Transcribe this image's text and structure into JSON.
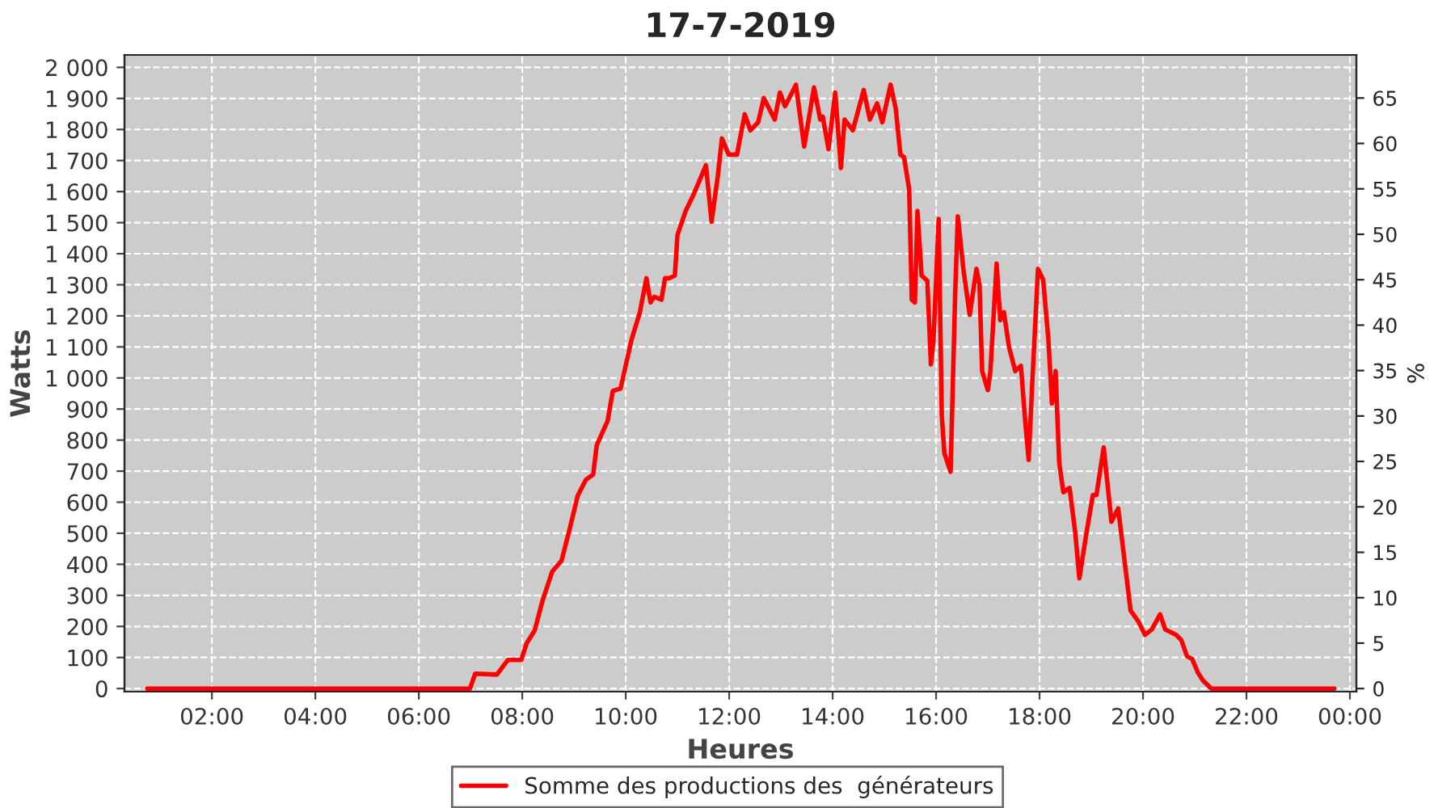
{
  "chart_data": {
    "type": "line",
    "title": "17-7-2019",
    "xlabel": "Heures",
    "ylabel": "Watts",
    "y2label": "%",
    "series": [
      {
        "name": "Somme des productions des  générateurs",
        "color": "#ff0000",
        "x": [
          0.75,
          6.99,
          7.09,
          7.51,
          7.72,
          7.98,
          8.08,
          8.24,
          8.39,
          8.58,
          8.76,
          8.92,
          9.07,
          9.23,
          9.37,
          9.44,
          9.65,
          9.75,
          9.9,
          10.11,
          10.27,
          10.4,
          10.48,
          10.55,
          10.69,
          10.76,
          10.84,
          10.95,
          11.0,
          11.16,
          11.31,
          11.42,
          11.55,
          11.66,
          11.78,
          11.86,
          11.99,
          12.15,
          12.3,
          12.41,
          12.56,
          12.67,
          12.88,
          12.98,
          13.08,
          13.29,
          13.45,
          13.64,
          13.76,
          13.81,
          13.92,
          14.05,
          14.16,
          14.23,
          14.39,
          14.6,
          14.72,
          14.86,
          14.96,
          15.12,
          15.22,
          15.31,
          15.38,
          15.48,
          15.53,
          15.59,
          15.64,
          15.72,
          15.83,
          15.9,
          15.95,
          16.05,
          16.11,
          16.16,
          16.28,
          16.37,
          16.42,
          16.53,
          16.65,
          16.78,
          16.84,
          16.89,
          17.0,
          17.05,
          17.17,
          17.24,
          17.31,
          17.41,
          17.53,
          17.64,
          17.72,
          17.79,
          17.86,
          17.97,
          18.07,
          18.17,
          18.24,
          18.31,
          18.38,
          18.46,
          18.58,
          18.69,
          18.77,
          18.9,
          19.03,
          19.1,
          19.24,
          19.39,
          19.52,
          19.76,
          19.91,
          20.04,
          20.17,
          20.33,
          20.43,
          20.64,
          20.74,
          20.85,
          20.95,
          21.06,
          21.16,
          21.32,
          23.7
        ],
        "values": [
          0,
          0,
          48,
          45,
          92,
          92,
          144,
          187,
          282,
          377,
          412,
          516,
          620,
          672,
          689,
          784,
          862,
          958,
          966,
          1122,
          1209,
          1321,
          1243,
          1261,
          1252,
          1321,
          1321,
          1330,
          1460,
          1538,
          1590,
          1633,
          1685,
          1503,
          1650,
          1771,
          1719,
          1719,
          1849,
          1797,
          1823,
          1901,
          1832,
          1919,
          1875,
          1944,
          1745,
          1935,
          1832,
          1841,
          1737,
          1919,
          1676,
          1832,
          1797,
          1927,
          1832,
          1884,
          1823,
          1944,
          1867,
          1719,
          1711,
          1607,
          1252,
          1243,
          1538,
          1330,
          1313,
          1044,
          1122,
          1512,
          880,
          758,
          698,
          1278,
          1520,
          1347,
          1203,
          1351,
          1299,
          1022,
          961,
          1022,
          1368,
          1186,
          1212,
          1100,
          1022,
          1039,
          866,
          736,
          987,
          1351,
          1316,
          1126,
          918,
          1022,
          727,
          632,
          646,
          502,
          355,
          494,
          623,
          623,
          776,
          537,
          580,
          251,
          216,
          173,
          190,
          239,
          190,
          173,
          156,
          104,
          95,
          52,
          26,
          0,
          0
        ]
      }
    ],
    "xlim": [
      0.31,
      24.125
    ],
    "xticks": [
      {
        "value": 2,
        "label": "02:00"
      },
      {
        "value": 4,
        "label": "04:00"
      },
      {
        "value": 6,
        "label": "06:00"
      },
      {
        "value": 8,
        "label": "08:00"
      },
      {
        "value": 10,
        "label": "10:00"
      },
      {
        "value": 12,
        "label": "12:00"
      },
      {
        "value": 14,
        "label": "14:00"
      },
      {
        "value": 16,
        "label": "16:00"
      },
      {
        "value": 18,
        "label": "18:00"
      },
      {
        "value": 20,
        "label": "20:00"
      },
      {
        "value": 22,
        "label": "22:00"
      },
      {
        "value": 24,
        "label": "00:00"
      }
    ],
    "ylim": [
      -10,
      2040
    ],
    "yticks": [
      0,
      100,
      200,
      300,
      400,
      500,
      600,
      700,
      800,
      900,
      {
        "value": 1000,
        "label": "1 000"
      },
      {
        "value": 1100,
        "label": "1 100"
      },
      {
        "value": 1200,
        "label": "1 200"
      },
      {
        "value": 1300,
        "label": "1 300"
      },
      {
        "value": 1400,
        "label": "1 400"
      },
      {
        "value": 1500,
        "label": "1 500"
      },
      {
        "value": 1600,
        "label": "1 600"
      },
      {
        "value": 1700,
        "label": "1 700"
      },
      {
        "value": 1800,
        "label": "1 800"
      },
      {
        "value": 1900,
        "label": "1 900"
      },
      {
        "value": 2000,
        "label": "2 000"
      }
    ],
    "y2lim": [
      -0.34,
      69.74
    ],
    "y2ticks": [
      0,
      5,
      10,
      15,
      20,
      25,
      30,
      35,
      40,
      45,
      50,
      55,
      60,
      65
    ],
    "grid": true,
    "legend": "bottom",
    "line_style": "solid"
  }
}
